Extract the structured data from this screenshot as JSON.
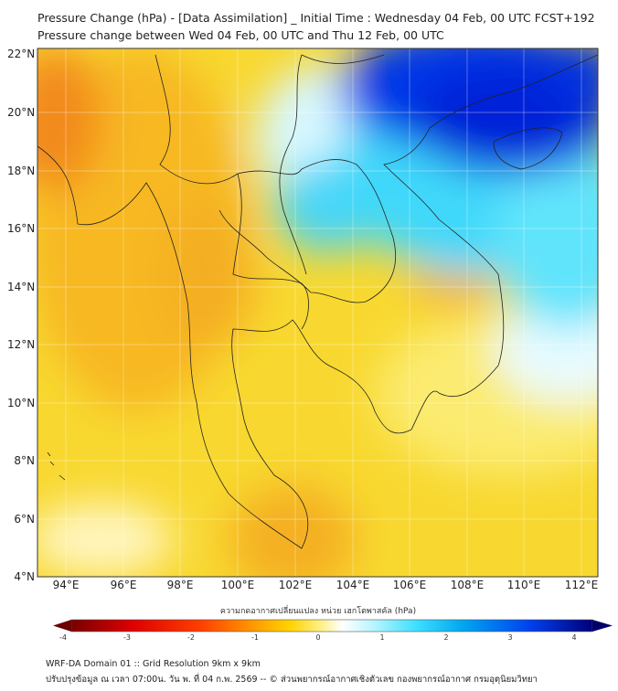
{
  "header": {
    "title": "Pressure Change (hPa) - [Data Assimilation] _ Initial Time : Wednesday 04 Feb, 00 UTC FCST+192",
    "subtitle": "Pressure change between Wed 04 Feb, 00 UTC and Thu 12 Feb, 00 UTC"
  },
  "map": {
    "lat_labels": [
      "22°N",
      "20°N",
      "18°N",
      "16°N",
      "14°N",
      "12°N",
      "10°N",
      "8°N",
      "6°N",
      "4°N"
    ],
    "lon_labels": [
      "94°E",
      "96°E",
      "98°E",
      "100°E",
      "102°E",
      "104°E",
      "106°E",
      "108°E",
      "110°E",
      "112°E"
    ],
    "lat_range": [
      4,
      22.2
    ],
    "lon_range": [
      93,
      112.6
    ]
  },
  "colorbar": {
    "title": "ความกดอากาศเปลี่ยนแปลง หน่วย เฮกโตพาสคัล (hPa)",
    "ticks": [
      "-4",
      "-3",
      "-2",
      "-1",
      "0",
      "1",
      "2",
      "3",
      "4"
    ],
    "range": [
      -4,
      4
    ],
    "colors": [
      "#7a0000",
      "#e00000",
      "#ff4000",
      "#ff9a00",
      "#ffd400",
      "#fff08a",
      "#ffffff",
      "#b8f5ff",
      "#40e0ff",
      "#00a8f0",
      "#0040f0",
      "#00007a"
    ]
  },
  "footer": {
    "line1": "WRF-DA Domain 01 :: Grid Resolution 9km x 9km",
    "line2": "ปรับปรุงข้อมูล ณ เวลา 07:00น. วัน พ. ที่ 04 ก.พ. 2569 -- © ส่วนพยากรณ์อากาศเชิงตัวเลข กองพยากรณ์อากาศ กรมอุตุนิยมวิทยา"
  }
}
